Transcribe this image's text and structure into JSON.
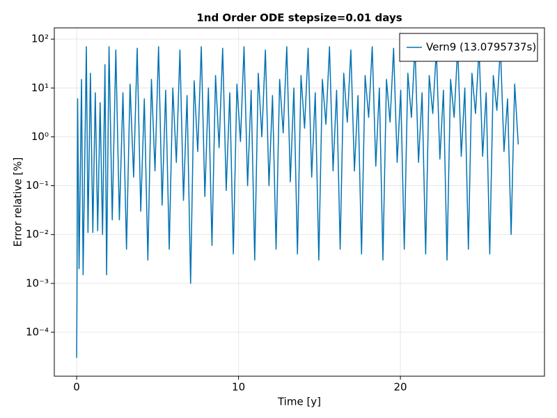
{
  "chart_data": {
    "type": "line",
    "title": "1nd Order ODE stepsize=0.01 days",
    "x_label": "Time [y]",
    "y_label": "Error relative [%]",
    "log_y": true,
    "grid": true,
    "legend_position": "top-right",
    "xlim": [
      -1.38,
      28.9
    ],
    "xticks": [
      0,
      10,
      20
    ],
    "ylim": [
      1.26e-05,
      170
    ],
    "yticks": [
      {
        "value": 0.0001,
        "label": "10⁻⁴"
      },
      {
        "value": 0.001,
        "label": "10⁻³"
      },
      {
        "value": 0.01,
        "label": "10⁻²"
      },
      {
        "value": 0.1,
        "label": "10⁻¹"
      },
      {
        "value": 1,
        "label": "10⁰"
      },
      {
        "value": 10,
        "label": "10¹"
      },
      {
        "value": 100,
        "label": "10²"
      }
    ],
    "x": [
      0,
      0.02,
      0.06,
      0.15,
      0.3,
      0.4,
      0.6,
      0.7,
      0.85,
      1.0,
      1.15,
      1.3,
      1.45,
      1.6,
      1.75,
      1.85,
      2.0,
      2.2,
      2.42,
      2.64,
      2.86,
      3.08,
      3.3,
      3.52,
      3.74,
      3.96,
      4.18,
      4.4,
      4.62,
      4.84,
      5.06,
      5.28,
      5.5,
      5.72,
      5.94,
      6.16,
      6.38,
      6.6,
      6.82,
      7.04,
      7.26,
      7.48,
      7.7,
      7.92,
      8.14,
      8.36,
      8.58,
      8.8,
      9.02,
      9.24,
      9.46,
      9.68,
      9.9,
      10.12,
      10.34,
      10.56,
      10.78,
      11,
      11.22,
      11.44,
      11.66,
      11.88,
      12.1,
      12.32,
      12.54,
      12.76,
      12.98,
      13.2,
      13.42,
      13.64,
      13.86,
      14.08,
      14.3,
      14.52,
      14.74,
      14.96,
      15.18,
      15.4,
      15.62,
      15.84,
      16.06,
      16.28,
      16.5,
      16.72,
      16.94,
      17.16,
      17.38,
      17.6,
      17.82,
      18.04,
      18.26,
      18.48,
      18.7,
      18.92,
      19.14,
      19.36,
      19.58,
      19.8,
      20.02,
      20.24,
      20.46,
      20.68,
      20.9,
      21.12,
      21.34,
      21.56,
      21.78,
      22,
      22.22,
      22.44,
      22.66,
      22.88,
      23.1,
      23.32,
      23.54,
      23.76,
      23.98,
      24.2,
      24.42,
      24.64,
      24.86,
      25.08,
      25.3,
      25.52,
      25.74,
      25.96,
      26.18,
      26.4,
      26.62,
      26.84,
      27.06,
      27.28
    ],
    "series": [
      {
        "name": "Vern9 (13.0795737s)",
        "color": "#0072b2",
        "values": [
          3e-05,
          0.0005,
          6,
          0.002,
          15,
          0.0015,
          70,
          0.011,
          20,
          0.011,
          8,
          0.012,
          5,
          0.01,
          30,
          0.0015,
          70,
          0.02,
          60,
          0.02,
          8,
          0.005,
          12,
          0.15,
          65,
          0.03,
          6,
          0.003,
          15,
          0.2,
          70,
          0.04,
          9,
          0.005,
          10,
          0.3,
          60,
          0.05,
          7,
          0.001,
          14,
          0.5,
          70,
          0.06,
          10,
          0.006,
          18,
          0.6,
          65,
          0.08,
          8,
          0.004,
          12,
          0.8,
          70,
          0.1,
          9,
          0.003,
          20,
          1,
          60,
          0.1,
          7,
          0.005,
          15,
          1.2,
          70,
          0.12,
          10,
          0.004,
          18,
          1.5,
          65,
          0.15,
          8,
          0.003,
          15,
          1.8,
          70,
          0.2,
          9,
          0.005,
          20,
          2,
          60,
          0.2,
          7,
          0.004,
          18,
          2.5,
          70,
          0.25,
          10,
          0.003,
          15,
          2,
          65,
          0.3,
          9,
          0.005,
          20,
          2.5,
          70,
          0.3,
          8,
          0.004,
          18,
          3,
          60,
          0.35,
          9,
          0.003,
          15,
          2.5,
          70,
          0.4,
          10,
          0.005,
          20,
          3,
          65,
          0.4,
          8,
          0.004,
          18,
          3.5,
          70,
          0.5,
          6,
          0.01,
          12,
          0.7
        ]
      }
    ]
  }
}
